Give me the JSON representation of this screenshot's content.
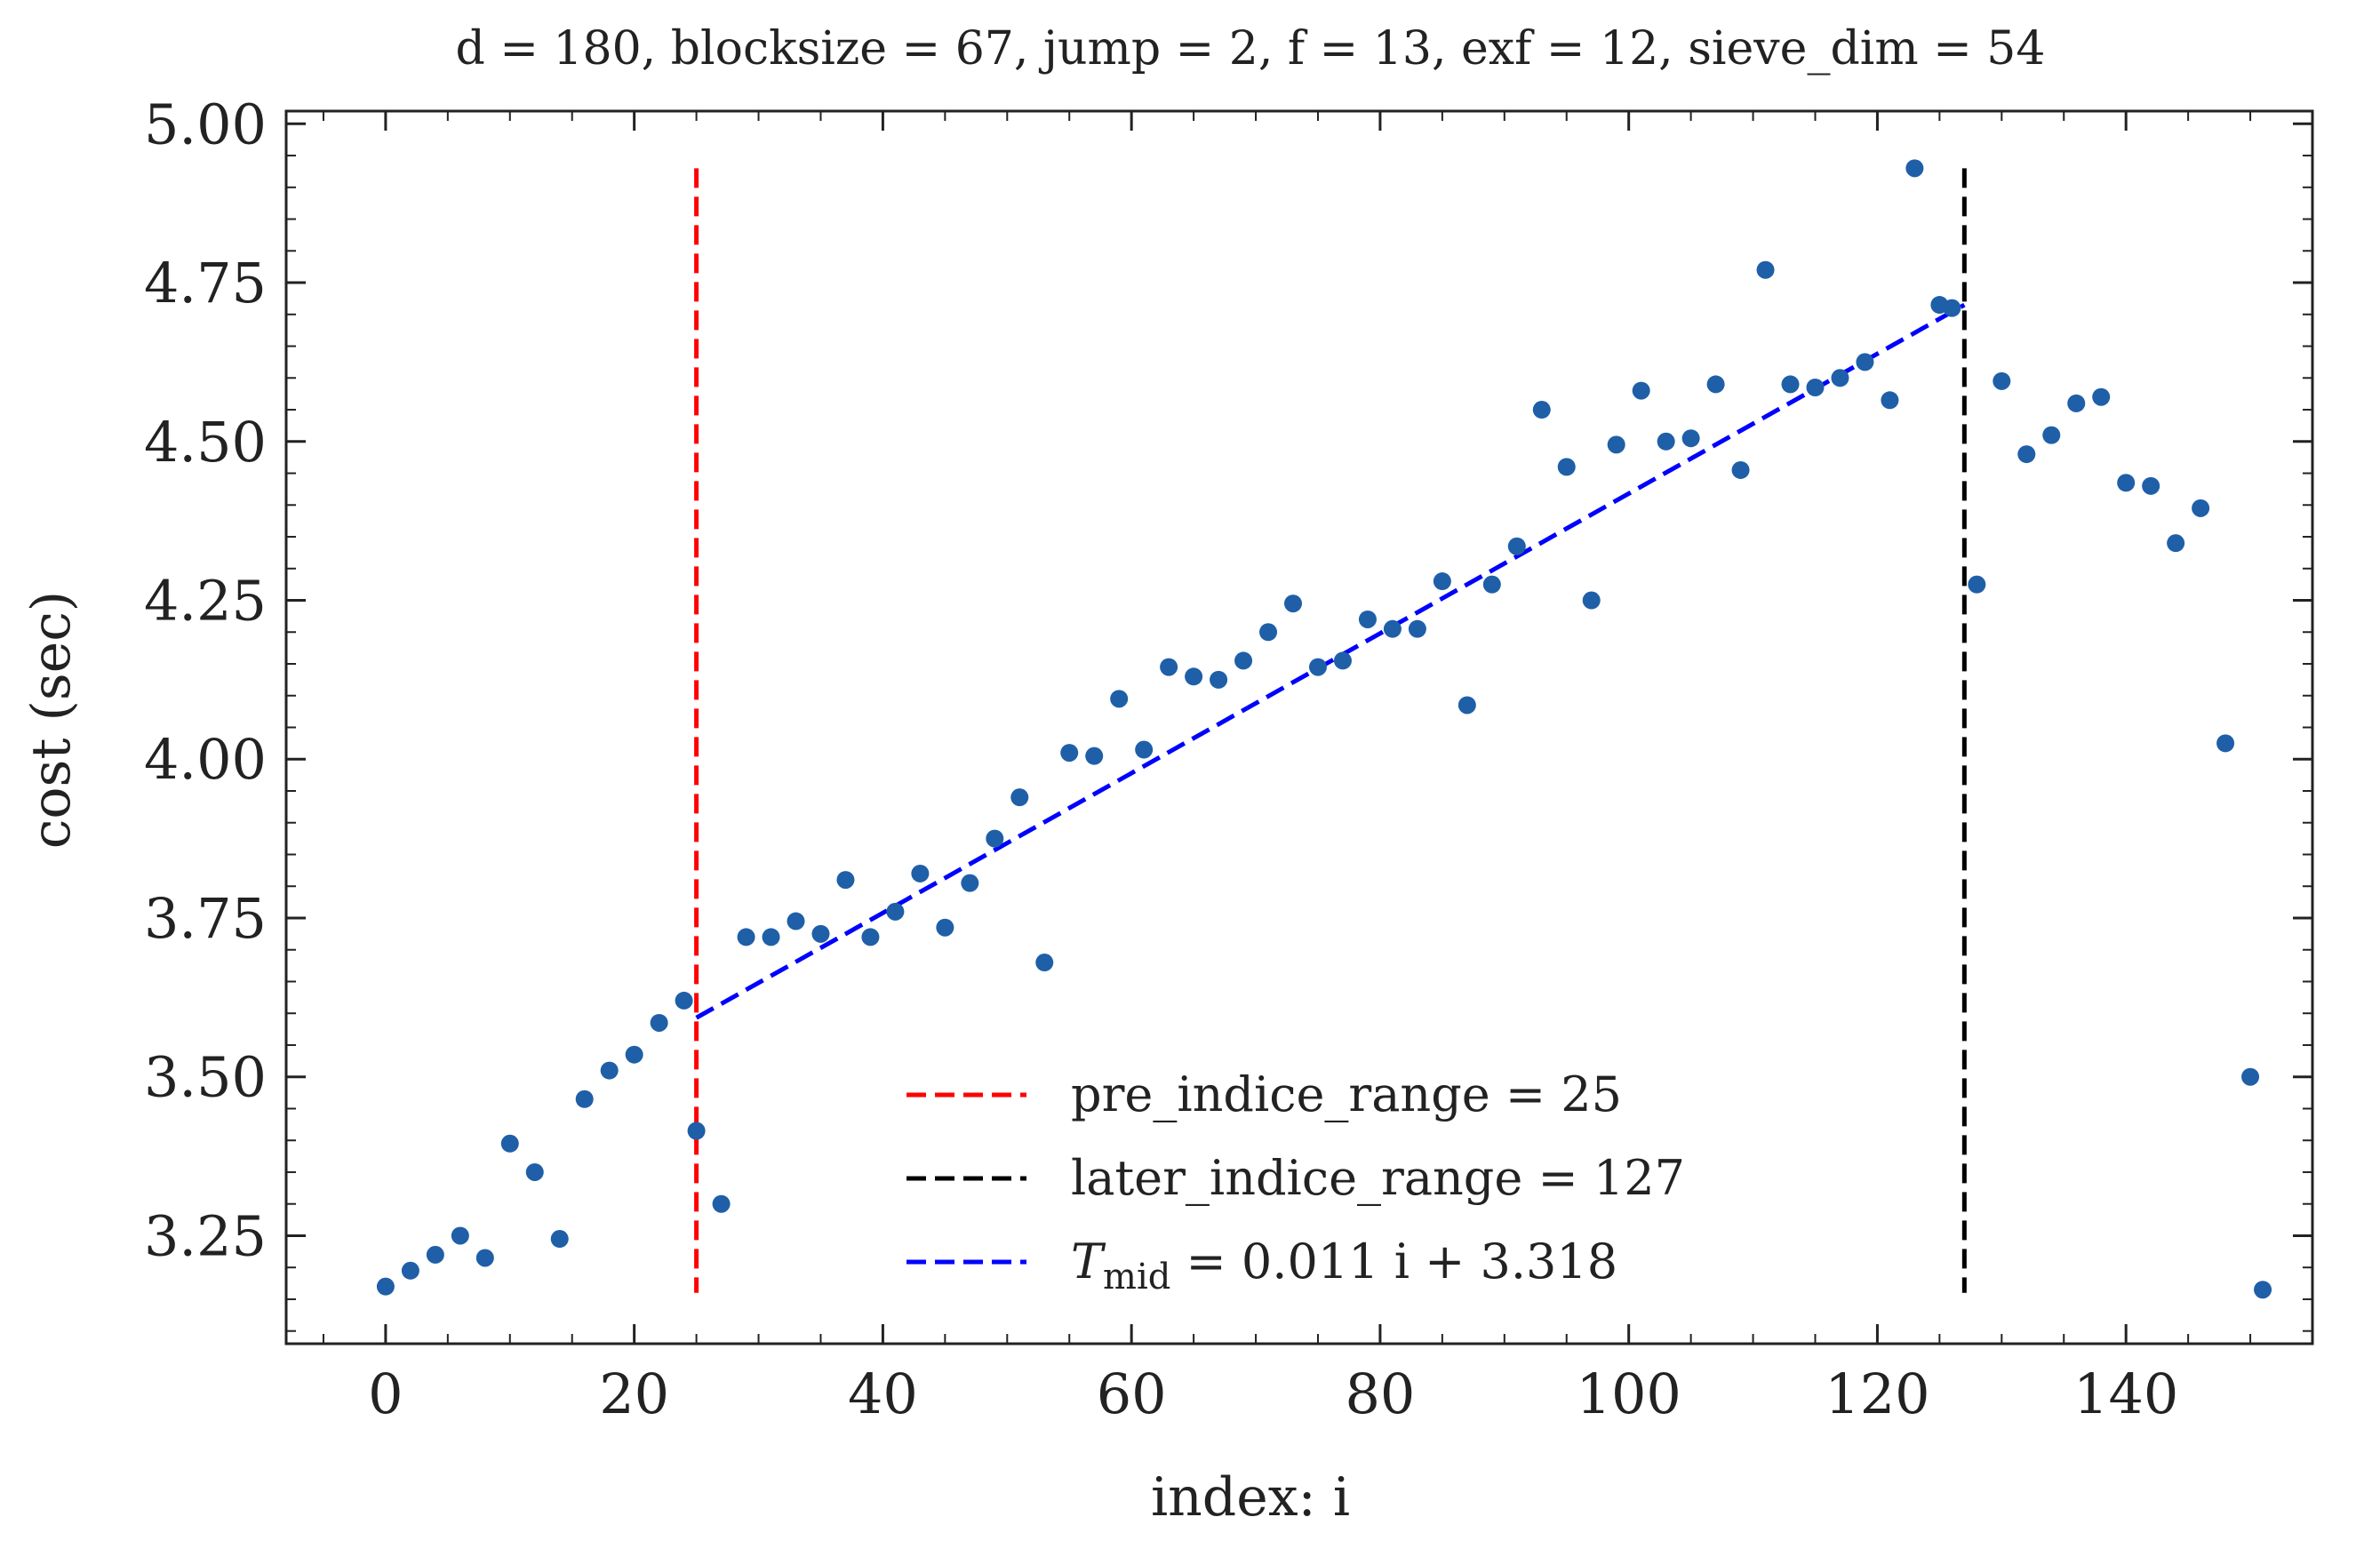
{
  "chart_data": {
    "type": "scatter",
    "title": "d = 180, blocksize = 67, jump = 2, f = 13, exf = 12, sieve_dim = 54",
    "xlabel": "index: i",
    "ylabel": "cost (sec)",
    "xlim": [
      -8,
      155
    ],
    "ylim": [
      3.08,
      5.02
    ],
    "xticks": [
      0,
      20,
      40,
      60,
      80,
      100,
      120,
      140
    ],
    "yticks": [
      3.25,
      3.5,
      3.75,
      4.0,
      4.25,
      4.5,
      4.75,
      5.0
    ],
    "xtick_labels": [
      "0",
      "20",
      "40",
      "60",
      "80",
      "100",
      "120",
      "140"
    ],
    "ytick_labels": [
      "3.25",
      "3.50",
      "3.75",
      "4.00",
      "4.25",
      "4.50",
      "4.75",
      "5.00"
    ],
    "grid": false,
    "legend_position": "lower-center",
    "series": [
      {
        "kind": "scatter",
        "color": "#1f5fa8",
        "x": [
          0,
          2,
          4,
          6,
          8,
          10,
          12,
          14,
          16,
          18,
          20,
          22,
          24,
          25,
          27,
          29,
          31,
          33,
          35,
          37,
          39,
          41,
          43,
          45,
          47,
          49,
          51,
          53,
          55,
          57,
          59,
          61,
          63,
          65,
          67,
          69,
          71,
          73,
          75,
          77,
          79,
          81,
          83,
          85,
          87,
          89,
          91,
          93,
          95,
          97,
          99,
          101,
          103,
          105,
          107,
          109,
          111,
          113,
          115,
          117,
          119,
          121,
          123,
          125,
          126,
          128,
          130,
          132,
          134,
          136,
          138,
          140,
          142,
          144,
          146,
          148,
          150,
          151
        ],
        "y": [
          3.17,
          3.195,
          3.22,
          3.25,
          3.215,
          3.395,
          3.35,
          3.245,
          3.465,
          3.51,
          3.535,
          3.585,
          3.62,
          3.415,
          3.3,
          3.72,
          3.72,
          3.745,
          3.725,
          3.81,
          3.72,
          3.76,
          3.82,
          3.735,
          3.805,
          3.875,
          3.94,
          3.68,
          4.01,
          4.005,
          4.095,
          4.015,
          4.145,
          4.13,
          4.125,
          4.155,
          4.2,
          4.245,
          4.145,
          4.155,
          4.22,
          4.205,
          4.205,
          4.28,
          4.085,
          4.275,
          4.335,
          4.55,
          4.46,
          4.25,
          4.495,
          4.58,
          4.5,
          4.505,
          4.59,
          4.455,
          4.77,
          4.59,
          4.585,
          4.6,
          4.625,
          4.565,
          4.93,
          4.715,
          4.71,
          4.275,
          4.595,
          4.48,
          4.51,
          4.56,
          4.57,
          4.435,
          4.43,
          4.34,
          4.395,
          4.025,
          3.5,
          3.165
        ]
      }
    ],
    "lines": [
      {
        "name": "pre_indice_range = 25",
        "color": "#ff0000",
        "type": "vline",
        "x": 25,
        "y_from": 3.16,
        "y_to": 4.93
      },
      {
        "name": "later_indice_range = 127",
        "color": "#000000",
        "type": "vline",
        "x": 127,
        "y_from": 3.16,
        "y_to": 4.93
      },
      {
        "name": "T_mid = 0.011 i + 3.318",
        "color": "#0000ff",
        "type": "fit",
        "x_from": 25,
        "x_to": 127,
        "slope": 0.011,
        "intercept": 3.318
      }
    ],
    "legend": {
      "entries": [
        {
          "text": "pre_indice_range = 25",
          "color": "#ff0000"
        },
        {
          "text": "later_indice_range = 127",
          "color": "#000000"
        },
        {
          "text": "= 0.011 i + 3.318",
          "math_T": "T",
          "math_sub": "mid",
          "color": "#0000ff"
        }
      ]
    }
  }
}
